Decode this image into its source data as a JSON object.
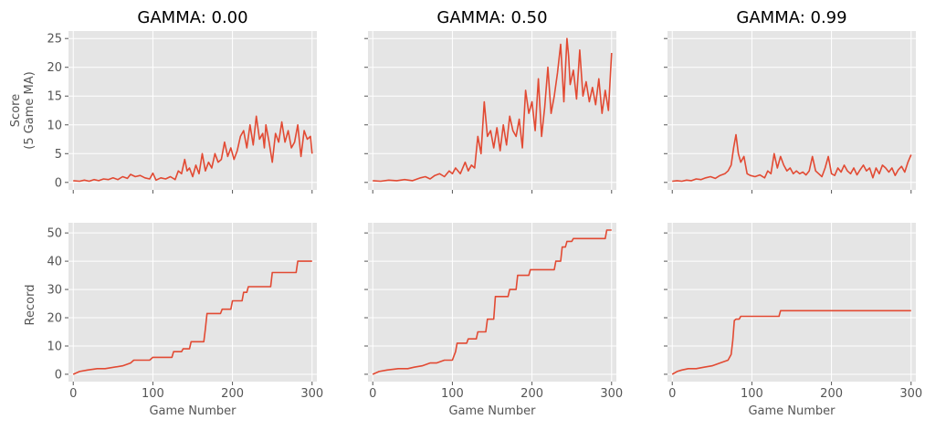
{
  "shared": {
    "xlabel": "Game Number",
    "score_ylabel_lines": [
      "Score",
      "(5 Game MA)"
    ],
    "record_ylabel": "Record",
    "line_color": "#e24a33",
    "panel_bg": "#e5e5e5",
    "grid": true,
    "xlim": [
      -6,
      306
    ],
    "xticks": [
      0,
      100,
      200,
      300
    ],
    "score_ylim": [
      -1.3,
      26.3
    ],
    "score_yticks": [
      0,
      5,
      10,
      15,
      20,
      25
    ],
    "record_ylim": [
      -2.6,
      53.6
    ],
    "record_yticks": [
      0,
      10,
      20,
      30,
      40,
      50
    ]
  },
  "chart_data": [
    {
      "type": "line",
      "id": "score-g000",
      "title": "GAMMA: 0.00",
      "xlabel": "",
      "ylabel": "Score\n(5 Game MA)",
      "series": [
        {
          "x": [
            0,
            8,
            14,
            20,
            26,
            32,
            38,
            44,
            50,
            56,
            62,
            68,
            72,
            78,
            84,
            90,
            96,
            100,
            104,
            110,
            116,
            122,
            128,
            132,
            136,
            140,
            143,
            146,
            150,
            154,
            158,
            162,
            166,
            170,
            174,
            178,
            182,
            186,
            190,
            194,
            198,
            202,
            206,
            210,
            214,
            218,
            222,
            226,
            230,
            234,
            238,
            240,
            242,
            246,
            250,
            254,
            258,
            262,
            266,
            270,
            274,
            278,
            282,
            286,
            290,
            294,
            298,
            300
          ],
          "y": [
            0.3,
            0.2,
            0.4,
            0.2,
            0.5,
            0.3,
            0.6,
            0.5,
            0.8,
            0.5,
            1.0,
            0.7,
            1.4,
            1.0,
            1.2,
            0.8,
            0.6,
            1.6,
            0.4,
            0.8,
            0.6,
            1.0,
            0.5,
            2.0,
            1.5,
            4.0,
            2.0,
            2.5,
            1.0,
            3.0,
            1.5,
            5.0,
            2.0,
            3.5,
            2.5,
            5.0,
            3.5,
            4.0,
            7.0,
            4.5,
            6.0,
            4.0,
            5.5,
            8.0,
            9.0,
            6.0,
            10.0,
            6.5,
            11.5,
            7.5,
            8.5,
            6.0,
            10.0,
            7.0,
            3.5,
            8.5,
            7.0,
            10.5,
            7.0,
            9.0,
            6.0,
            7.0,
            10.0,
            4.5,
            9.0,
            7.5,
            8.0,
            5.0
          ]
        }
      ]
    },
    {
      "type": "line",
      "id": "score-g050",
      "title": "GAMMA: 0.50",
      "xlabel": "",
      "ylabel": "",
      "series": [
        {
          "x": [
            0,
            10,
            20,
            30,
            40,
            50,
            60,
            66,
            72,
            78,
            84,
            90,
            96,
            100,
            104,
            110,
            116,
            120,
            124,
            128,
            132,
            136,
            140,
            144,
            148,
            152,
            156,
            160,
            164,
            168,
            172,
            176,
            180,
            184,
            188,
            192,
            196,
            200,
            204,
            208,
            212,
            216,
            220,
            224,
            228,
            232,
            236,
            240,
            244,
            246,
            248,
            252,
            256,
            260,
            264,
            268,
            272,
            276,
            280,
            284,
            288,
            292,
            296,
            300
          ],
          "y": [
            0.3,
            0.2,
            0.4,
            0.3,
            0.5,
            0.3,
            0.8,
            1.0,
            0.6,
            1.2,
            1.5,
            1.0,
            2.0,
            1.5,
            2.5,
            1.5,
            3.5,
            2.0,
            3.0,
            2.5,
            8.0,
            5.0,
            14.0,
            8.0,
            9.0,
            6.0,
            9.5,
            5.5,
            10.0,
            6.5,
            11.5,
            9.0,
            8.0,
            11.0,
            6.0,
            16.0,
            12.0,
            14.0,
            9.0,
            18.0,
            8.0,
            13.0,
            20.0,
            12.0,
            15.0,
            19.0,
            24.0,
            14.0,
            25.0,
            22.0,
            17.0,
            19.5,
            14.5,
            23.0,
            15.0,
            17.5,
            14.0,
            16.5,
            13.5,
            18.0,
            12.0,
            16.0,
            12.5,
            22.5
          ]
        }
      ]
    },
    {
      "type": "line",
      "id": "score-g099",
      "title": "GAMMA: 0.99",
      "xlabel": "",
      "ylabel": "",
      "series": [
        {
          "x": [
            0,
            6,
            12,
            18,
            24,
            30,
            36,
            42,
            48,
            54,
            60,
            66,
            70,
            74,
            77,
            80,
            83,
            86,
            90,
            94,
            98,
            104,
            110,
            116,
            120,
            124,
            128,
            132,
            136,
            140,
            144,
            148,
            152,
            156,
            160,
            164,
            168,
            172,
            176,
            180,
            184,
            188,
            192,
            196,
            200,
            204,
            208,
            212,
            216,
            220,
            224,
            228,
            232,
            236,
            240,
            244,
            248,
            252,
            256,
            260,
            264,
            268,
            272,
            276,
            280,
            284,
            288,
            292,
            296,
            300
          ],
          "y": [
            0.2,
            0.3,
            0.2,
            0.4,
            0.3,
            0.6,
            0.5,
            0.8,
            1.0,
            0.7,
            1.2,
            1.5,
            2.0,
            3.0,
            6.0,
            8.3,
            5.0,
            3.5,
            4.5,
            1.5,
            1.2,
            1.0,
            1.3,
            0.8,
            2.0,
            1.5,
            5.0,
            2.5,
            4.5,
            3.0,
            2.0,
            2.5,
            1.5,
            2.0,
            1.5,
            1.8,
            1.3,
            2.0,
            4.5,
            2.0,
            1.5,
            1.0,
            2.5,
            4.5,
            1.5,
            1.2,
            2.5,
            1.8,
            3.0,
            2.0,
            1.5,
            2.5,
            1.3,
            2.2,
            3.0,
            2.0,
            2.5,
            0.8,
            2.5,
            1.5,
            3.0,
            2.5,
            1.8,
            2.5,
            1.2,
            2.2,
            2.8,
            1.8,
            3.5,
            4.8
          ]
        }
      ]
    },
    {
      "type": "line",
      "id": "record-g000",
      "title": "",
      "xlabel": "Game Number",
      "ylabel": "Record",
      "series": [
        {
          "x": [
            0,
            8,
            18,
            30,
            40,
            62,
            72,
            76,
            80,
            96,
            100,
            124,
            126,
            136,
            138,
            146,
            148,
            164,
            166,
            168,
            185,
            187,
            198,
            200,
            212,
            214,
            218,
            220,
            248,
            250,
            280,
            282,
            300
          ],
          "y": [
            0,
            1,
            1.5,
            2,
            2,
            3,
            4,
            5,
            5,
            5,
            6,
            6,
            8,
            8,
            9,
            9,
            11.5,
            11.5,
            16,
            21.5,
            21.5,
            23,
            23,
            26,
            26,
            29,
            29,
            31,
            31,
            36,
            36,
            40,
            40
          ]
        }
      ]
    },
    {
      "type": "line",
      "id": "record-g050",
      "title": "",
      "xlabel": "Game Number",
      "ylabel": "Record",
      "series": [
        {
          "x": [
            0,
            8,
            18,
            32,
            44,
            52,
            62,
            72,
            80,
            90,
            100,
            104,
            106,
            118,
            120,
            130,
            132,
            142,
            144,
            152,
            154,
            170,
            172,
            180,
            182,
            196,
            198,
            228,
            230,
            236,
            238,
            242,
            244,
            250,
            252,
            292,
            294,
            300
          ],
          "y": [
            0,
            1,
            1.5,
            2,
            2,
            2.5,
            3,
            4,
            4,
            5,
            5,
            8,
            11,
            11,
            12.5,
            12.5,
            15,
            15,
            19.5,
            19.5,
            27.5,
            27.5,
            30,
            30,
            35,
            35,
            37,
            37,
            40,
            40,
            45,
            45,
            47,
            47,
            48,
            48,
            51,
            51
          ]
        }
      ]
    },
    {
      "type": "line",
      "id": "record-g099",
      "title": "",
      "xlabel": "Game Number",
      "ylabel": "Record",
      "series": [
        {
          "x": [
            0,
            6,
            12,
            20,
            30,
            40,
            50,
            60,
            70,
            74,
            76,
            78,
            80,
            84,
            86,
            90,
            134,
            136,
            300
          ],
          "y": [
            0,
            1,
            1.5,
            2,
            2,
            2.5,
            3,
            4,
            5,
            7,
            12,
            19,
            19.5,
            19.5,
            20.5,
            20.5,
            20.5,
            22.5,
            22.5
          ]
        }
      ]
    }
  ]
}
